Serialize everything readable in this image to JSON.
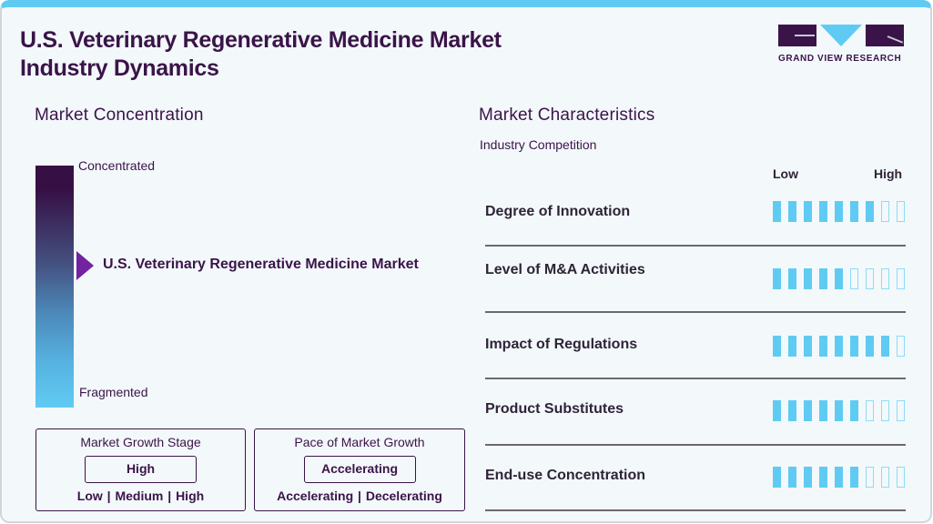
{
  "header": {
    "title_line1": "U.S. Veterinary Regenerative Medicine Market",
    "title_line2": "Industry Dynamics",
    "logo_text": "GRAND VIEW RESEARCH"
  },
  "market_concentration": {
    "title": "Market Concentration",
    "top_label": "Concentrated",
    "bottom_label": "Fragmented",
    "marker_label": "U.S. Veterinary Regenerative Medicine Market"
  },
  "growth_stage": {
    "title": "Market Growth Stage",
    "value": "High",
    "options": "Low | Medium | High"
  },
  "growth_pace": {
    "title": "Pace of Market Growth",
    "value": "Accelerating",
    "options": "Accelerating | Decelerating"
  },
  "market_characteristics": {
    "title": "Market Characteristics",
    "subtitle": "Industry Competition",
    "scale_low": "Low",
    "scale_high": "High",
    "max_level": 9,
    "rows": [
      {
        "label": "Degree of Innovation",
        "level": 7
      },
      {
        "label": "Level of M&A Activities",
        "level": 5
      },
      {
        "label": "Impact of Regulations",
        "level": 8
      },
      {
        "label": "Product Substitutes",
        "level": 6
      },
      {
        "label": "End-use Concentration",
        "level": 6
      }
    ]
  },
  "colors": {
    "primary": "#3a1448",
    "accent": "#5fcbf3",
    "marker": "#7322a0",
    "background": "#f3f8fb"
  },
  "chart_data": {
    "type": "table",
    "title": "Market Characteristics - Industry Competition",
    "scale": [
      1,
      9
    ],
    "categories": [
      "Degree of Innovation",
      "Level of M&A Activities",
      "Impact of Regulations",
      "Product Substitutes",
      "End-use Concentration"
    ],
    "values": [
      7,
      5,
      8,
      6,
      6
    ]
  }
}
